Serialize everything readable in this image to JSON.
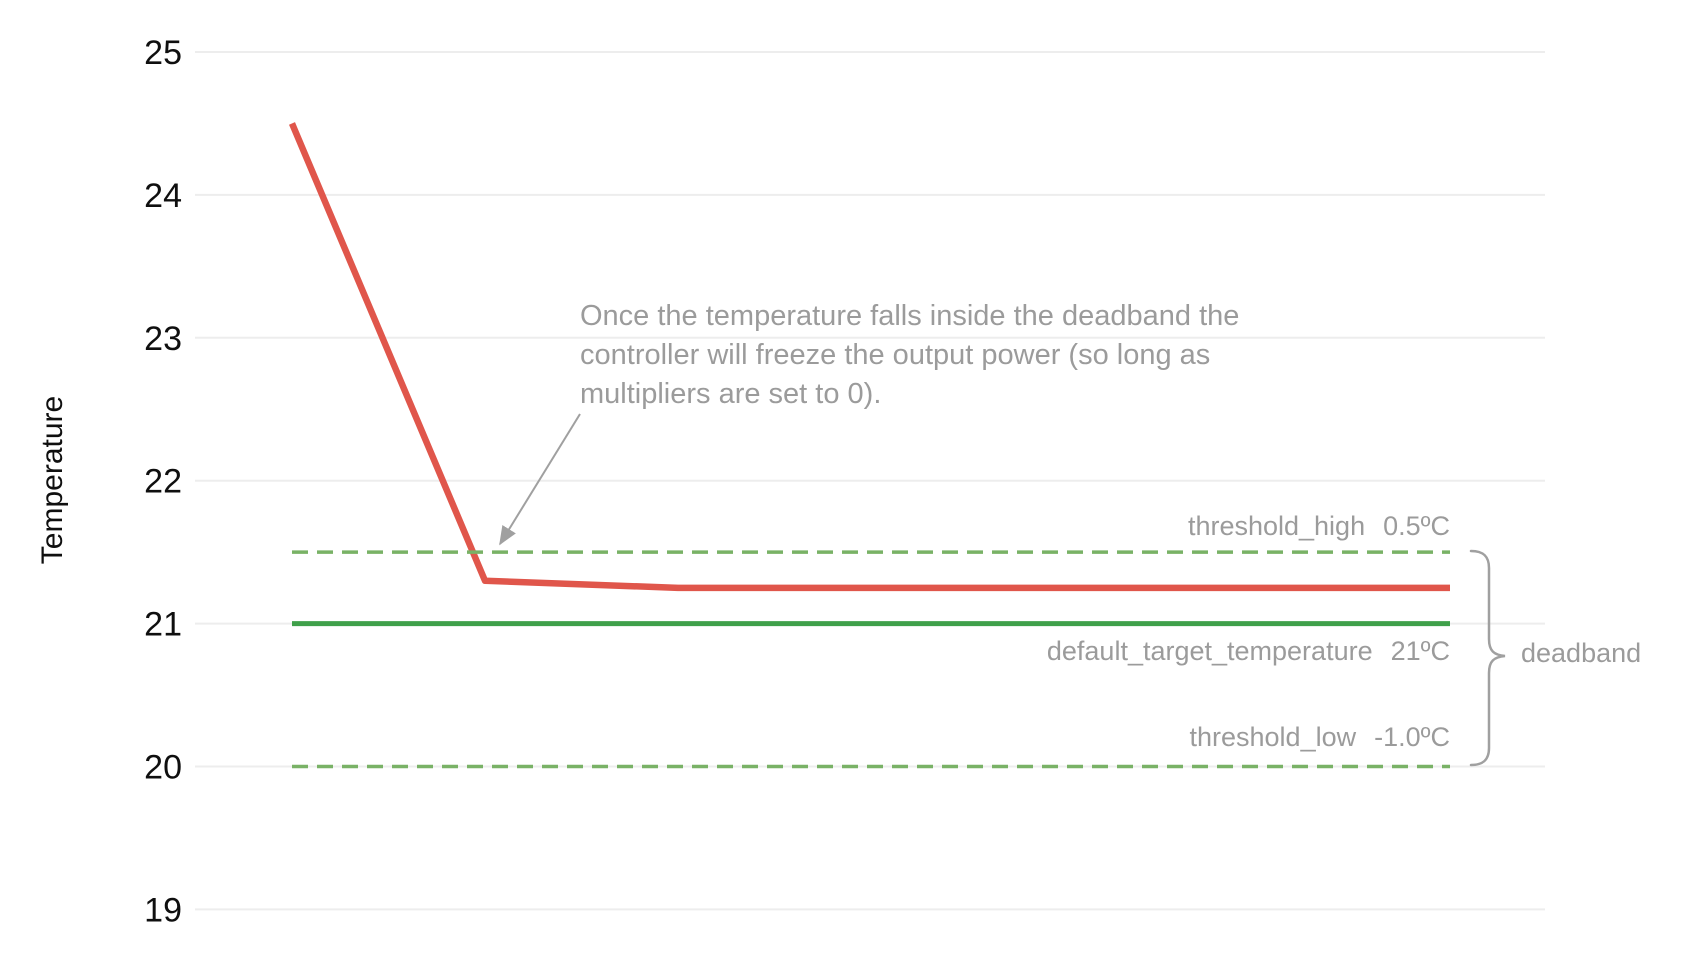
{
  "chart_data": {
    "type": "line",
    "title": "",
    "xlabel": "",
    "ylabel": "Temperature",
    "x": [
      0,
      1,
      2,
      3,
      4,
      5,
      6
    ],
    "series": [
      {
        "name": "temperature",
        "values": [
          24.5,
          21.3,
          21.25,
          21.25,
          21.25,
          21.25,
          21.25
        ],
        "color": "#e0564b",
        "style": "solid",
        "width": 6.5
      },
      {
        "name": "default_target_temperature",
        "values": [
          21,
          21,
          21,
          21,
          21,
          21,
          21
        ],
        "color": "#3fa04a",
        "style": "solid",
        "width": 5
      },
      {
        "name": "threshold_high",
        "values": [
          21.5,
          21.5,
          21.5,
          21.5,
          21.5,
          21.5,
          21.5
        ],
        "color": "#79b266",
        "style": "dashed",
        "width": 3.5
      },
      {
        "name": "threshold_low",
        "values": [
          20,
          20,
          20,
          20,
          20,
          20,
          20
        ],
        "color": "#79b266",
        "style": "dashed",
        "width": 3.5
      }
    ],
    "yticks": [
      25,
      24,
      23,
      22,
      21,
      20,
      19
    ],
    "ylim": [
      18.6,
      25.15
    ],
    "xlim": [
      0,
      6
    ],
    "grid": true,
    "legend_position": "none",
    "annotation_text": {
      "lines": [
        "Once the temperature falls inside the deadband the",
        "controller will freeze the output power (so long as",
        "multipliers are set to 0)."
      ]
    },
    "labels": {
      "threshold_high": {
        "name": "threshold_high",
        "value": "0.5ºC"
      },
      "target": {
        "name": "default_target_temperature",
        "value": "21ºC"
      },
      "threshold_low": {
        "name": "threshold_low",
        "value": "-1.0ºC"
      },
      "brace": "deadband"
    },
    "colors": {
      "temperature_line": "#e0564b",
      "target_line": "#3fa04a",
      "threshold_line": "#79b266",
      "gridline": "#ededed",
      "tick_text": "#0f0f0f",
      "annotation_text": "#9b9b9b",
      "arrow": "#a0a0a0",
      "brace": "#a0a0a0"
    }
  }
}
